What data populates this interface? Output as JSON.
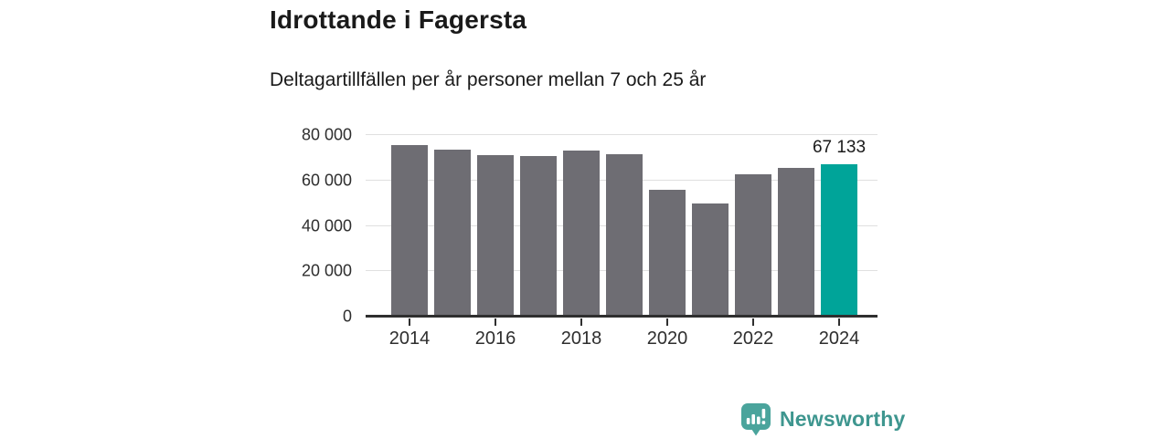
{
  "header": {
    "title": "Idrottande i Fagersta",
    "subtitle": "Deltagartillfällen per år personer mellan 7 och 25 år"
  },
  "chart_data": {
    "type": "bar",
    "title": "Idrottande i Fagersta",
    "subtitle": "Deltagartillfällen per år personer mellan 7 och 25 år",
    "categories": [
      2014,
      2015,
      2016,
      2017,
      2018,
      2019,
      2020,
      2021,
      2022,
      2023,
      2024
    ],
    "values": [
      75500,
      73700,
      71000,
      70600,
      73000,
      71600,
      56000,
      50000,
      62900,
      65600,
      67133
    ],
    "ylim": [
      0,
      80000
    ],
    "yticks": [
      {
        "value": 0,
        "label": "0"
      },
      {
        "value": 20000,
        "label": "20 000"
      },
      {
        "value": 40000,
        "label": "40 000"
      },
      {
        "value": 60000,
        "label": "60 000"
      },
      {
        "value": 80000,
        "label": "80 000"
      }
    ],
    "xticks": [
      "2014",
      "2016",
      "2018",
      "2020",
      "2022",
      "2024"
    ],
    "grid": true,
    "legend": false,
    "highlight_index": 10,
    "highlight_label": "67 133",
    "colors": {
      "bar": "#6e6d73",
      "highlight": "#00a499",
      "gridline": "#e0e0e0",
      "axis": "#2f2f2f",
      "tick_label": "#2e2e2e"
    }
  },
  "footer": {
    "brand": "Newsworthy",
    "logo_icon": "bar-chart-speech-bubble-icon",
    "colors": {
      "brand_text": "#3e968f",
      "logo_bubble": "#4aa49c"
    }
  }
}
